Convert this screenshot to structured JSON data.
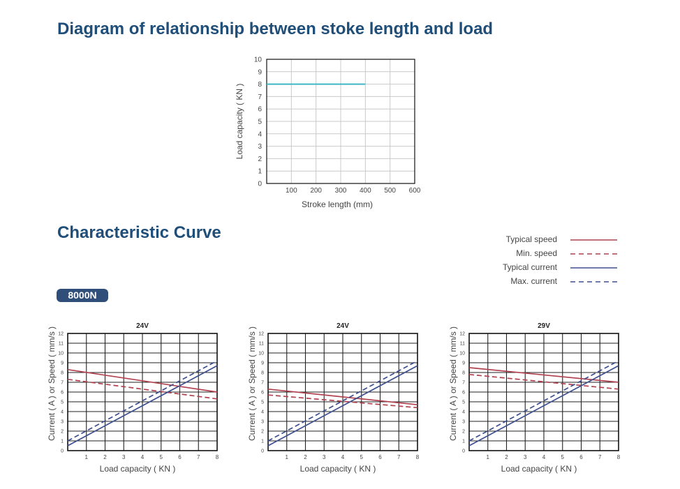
{
  "title_main": "Diagram of relationship between stoke length and load",
  "title_curve": "Characteristic Curve",
  "badge": "8000N",
  "legend": [
    {
      "label": "Typical speed",
      "color": "#b0414f",
      "dash": false
    },
    {
      "label": "Min. speed",
      "color": "#b0414f",
      "dash": true
    },
    {
      "label": "Typical current",
      "color": "#3d4f8f",
      "dash": false
    },
    {
      "label": "Max. current",
      "color": "#3d4f8f",
      "dash": true
    }
  ],
  "chart_data": [
    {
      "type": "line",
      "xlabel": "Stroke length (mm)",
      "ylabel": "Load capacity ( KN )",
      "xlim": [
        0,
        600
      ],
      "ylim": [
        0,
        10
      ],
      "xticks": [
        100,
        200,
        300,
        400,
        500,
        600
      ],
      "yticks": [
        0,
        1,
        2,
        3,
        4,
        5,
        6,
        7,
        8,
        9,
        10
      ],
      "grid": true,
      "series": [
        {
          "color": "#3fb6c6",
          "x": [
            0,
            400
          ],
          "y": [
            8,
            8
          ]
        }
      ]
    },
    {
      "type": "line",
      "title": "24V",
      "xlabel": "Load capacity ( KN )",
      "ylabel": "Current ( A ) or Speed ( mm/s )",
      "xlim": [
        0,
        8
      ],
      "ylim": [
        0,
        12
      ],
      "xticks": [
        1,
        2,
        3,
        4,
        5,
        6,
        7,
        8
      ],
      "yticks": [
        0,
        1,
        2,
        3,
        4,
        5,
        6,
        7,
        8,
        9,
        10,
        11,
        12
      ],
      "grid": true,
      "series": [
        {
          "name": "Typical speed",
          "x": [
            0,
            8
          ],
          "y": [
            8.3,
            6.0
          ]
        },
        {
          "name": "Min. speed",
          "x": [
            0,
            8
          ],
          "y": [
            7.3,
            5.3
          ]
        },
        {
          "name": "Typical current",
          "x": [
            0,
            8
          ],
          "y": [
            0.5,
            8.7
          ]
        },
        {
          "name": "Max. current",
          "x": [
            0,
            8
          ],
          "y": [
            1.0,
            9.2
          ]
        }
      ]
    },
    {
      "type": "line",
      "title": "24V",
      "xlabel": "Load capacity ( KN )",
      "ylabel": "Current ( A ) or Speed ( mm/s )",
      "xlim": [
        0,
        8
      ],
      "ylim": [
        0,
        12
      ],
      "xticks": [
        1,
        2,
        3,
        4,
        5,
        6,
        7,
        8
      ],
      "yticks": [
        0,
        1,
        2,
        3,
        4,
        5,
        6,
        7,
        8,
        9,
        10,
        11,
        12
      ],
      "grid": true,
      "series": [
        {
          "name": "Typical speed",
          "x": [
            0,
            8
          ],
          "y": [
            6.3,
            4.7
          ]
        },
        {
          "name": "Min. speed",
          "x": [
            0,
            8
          ],
          "y": [
            5.7,
            4.4
          ]
        },
        {
          "name": "Typical current",
          "x": [
            0,
            8
          ],
          "y": [
            0.5,
            8.7
          ]
        },
        {
          "name": "Max. current",
          "x": [
            0,
            8
          ],
          "y": [
            1.0,
            9.2
          ]
        }
      ]
    },
    {
      "type": "line",
      "title": "29V",
      "xlabel": "Load capacity ( KN )",
      "ylabel": "Current ( A ) or Speed ( mm/s )",
      "xlim": [
        0,
        8
      ],
      "ylim": [
        0,
        12
      ],
      "xticks": [
        1,
        2,
        3,
        4,
        5,
        6,
        7,
        8
      ],
      "yticks": [
        0,
        1,
        2,
        3,
        4,
        5,
        6,
        7,
        8,
        9,
        10,
        11,
        12
      ],
      "grid": true,
      "series": [
        {
          "name": "Typical speed",
          "x": [
            0,
            8
          ],
          "y": [
            8.5,
            7.0
          ]
        },
        {
          "name": "Min. speed",
          "x": [
            0,
            8
          ],
          "y": [
            7.8,
            6.3
          ]
        },
        {
          "name": "Typical current",
          "x": [
            0,
            8
          ],
          "y": [
            0.5,
            8.7
          ]
        },
        {
          "name": "Max. current",
          "x": [
            0,
            8
          ],
          "y": [
            1.0,
            9.2
          ]
        }
      ]
    }
  ]
}
